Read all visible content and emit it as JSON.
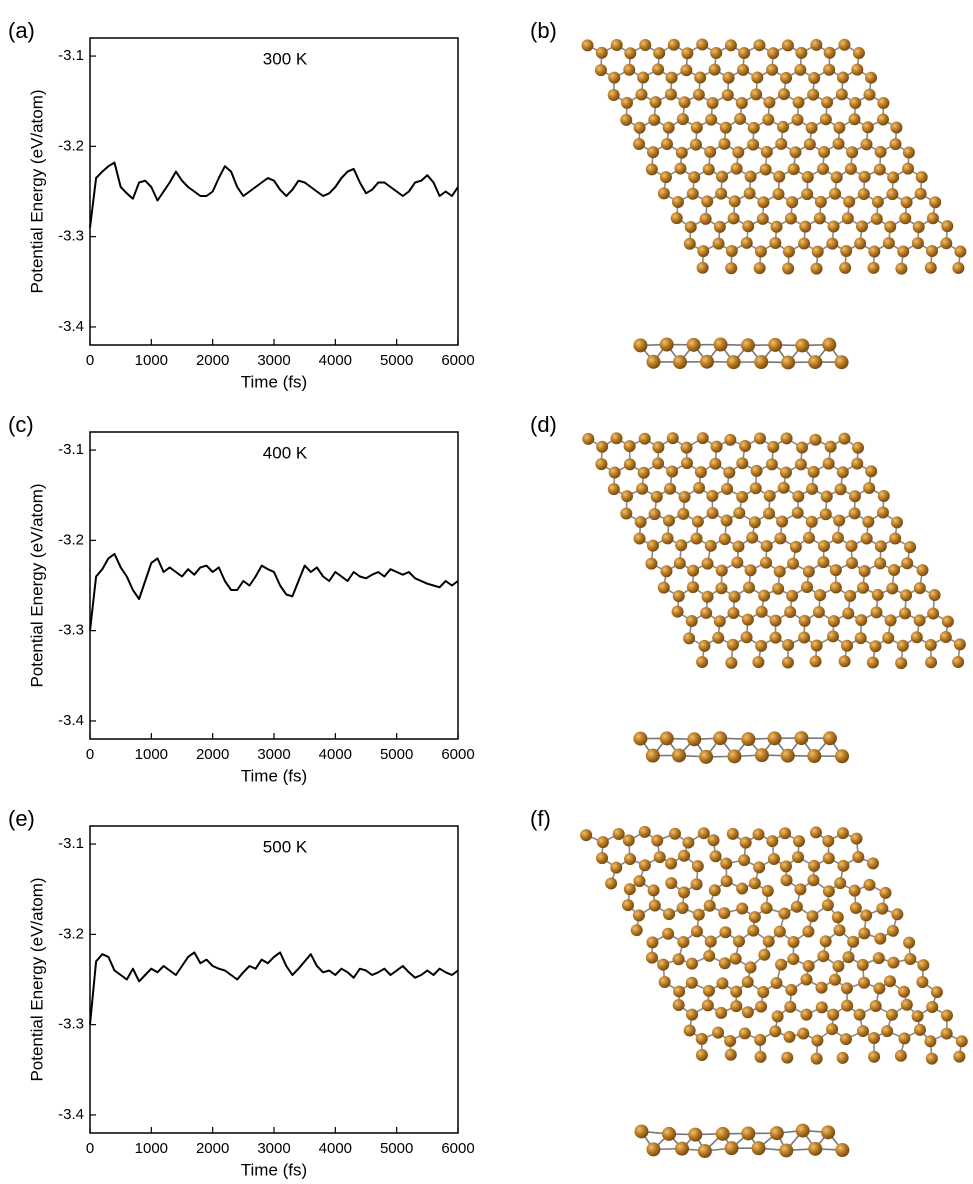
{
  "chart_data": [
    {
      "type": "line",
      "panel_label": "(a)",
      "annotation": "300 K",
      "xlabel": "Time (fs)",
      "ylabel": "Potential Energy (eV/atom)",
      "x": [
        0,
        100,
        200,
        300,
        400,
        500,
        600,
        700,
        800,
        900,
        1000,
        1100,
        1200,
        1300,
        1400,
        1500,
        1600,
        1700,
        1800,
        1900,
        2000,
        2100,
        2200,
        2300,
        2400,
        2500,
        2600,
        2700,
        2800,
        2900,
        3000,
        3100,
        3200,
        3300,
        3400,
        3500,
        3600,
        3700,
        3800,
        3900,
        4000,
        4100,
        4200,
        4300,
        4400,
        4500,
        4600,
        4700,
        4800,
        4900,
        5000,
        5100,
        5200,
        5300,
        5400,
        5500,
        5600,
        5700,
        5800,
        5900,
        6000
      ],
      "values": [
        -3.29,
        -3.235,
        -3.228,
        -3.222,
        -3.218,
        -3.245,
        -3.252,
        -3.258,
        -3.24,
        -3.238,
        -3.245,
        -3.26,
        -3.25,
        -3.24,
        -3.228,
        -3.238,
        -3.245,
        -3.25,
        -3.255,
        -3.255,
        -3.25,
        -3.235,
        -3.222,
        -3.228,
        -3.245,
        -3.255,
        -3.25,
        -3.245,
        -3.24,
        -3.235,
        -3.238,
        -3.248,
        -3.255,
        -3.248,
        -3.238,
        -3.24,
        -3.245,
        -3.25,
        -3.255,
        -3.252,
        -3.245,
        -3.235,
        -3.228,
        -3.225,
        -3.24,
        -3.252,
        -3.248,
        -3.24,
        -3.24,
        -3.245,
        -3.25,
        -3.255,
        -3.25,
        -3.24,
        -3.238,
        -3.232,
        -3.24,
        -3.255,
        -3.25,
        -3.255,
        -3.245
      ],
      "color": "#000000",
      "xlim": [
        0,
        6000
      ],
      "ylim": [
        -3.42,
        -3.08
      ],
      "xticks": [
        0,
        1000,
        2000,
        3000,
        4000,
        5000,
        6000
      ],
      "yticks": [
        -3.1,
        -3.2,
        -3.3,
        -3.4
      ]
    },
    {
      "type": "line",
      "panel_label": "(c)",
      "annotation": "400 K",
      "xlabel": "Time (fs)",
      "ylabel": "Potential Energy (eV/atom)",
      "x": [
        0,
        100,
        200,
        300,
        400,
        500,
        600,
        700,
        800,
        900,
        1000,
        1100,
        1200,
        1300,
        1400,
        1500,
        1600,
        1700,
        1800,
        1900,
        2000,
        2100,
        2200,
        2300,
        2400,
        2500,
        2600,
        2700,
        2800,
        2900,
        3000,
        3100,
        3200,
        3300,
        3400,
        3500,
        3600,
        3700,
        3800,
        3900,
        4000,
        4100,
        4200,
        4300,
        4400,
        4500,
        4600,
        4700,
        4800,
        4900,
        5000,
        5100,
        5200,
        5300,
        5400,
        5500,
        5600,
        5700,
        5800,
        5900,
        6000
      ],
      "values": [
        -3.3,
        -3.24,
        -3.232,
        -3.22,
        -3.215,
        -3.23,
        -3.24,
        -3.255,
        -3.265,
        -3.245,
        -3.225,
        -3.22,
        -3.235,
        -3.23,
        -3.235,
        -3.24,
        -3.232,
        -3.238,
        -3.23,
        -3.228,
        -3.235,
        -3.23,
        -3.245,
        -3.255,
        -3.255,
        -3.245,
        -3.25,
        -3.24,
        -3.228,
        -3.232,
        -3.235,
        -3.25,
        -3.26,
        -3.262,
        -3.245,
        -3.228,
        -3.235,
        -3.23,
        -3.24,
        -3.245,
        -3.235,
        -3.24,
        -3.245,
        -3.235,
        -3.24,
        -3.242,
        -3.238,
        -3.235,
        -3.24,
        -3.232,
        -3.235,
        -3.238,
        -3.235,
        -3.242,
        -3.245,
        -3.248,
        -3.25,
        -3.252,
        -3.245,
        -3.25,
        -3.245
      ],
      "color": "#000000",
      "xlim": [
        0,
        6000
      ],
      "ylim": [
        -3.42,
        -3.08
      ],
      "xticks": [
        0,
        1000,
        2000,
        3000,
        4000,
        5000,
        6000
      ],
      "yticks": [
        -3.1,
        -3.2,
        -3.3,
        -3.4
      ]
    },
    {
      "type": "line",
      "panel_label": "(e)",
      "annotation": "500 K",
      "xlabel": "Time (fs)",
      "ylabel": "Potential Energy (eV/atom)",
      "x": [
        0,
        100,
        200,
        300,
        400,
        500,
        600,
        700,
        800,
        900,
        1000,
        1100,
        1200,
        1300,
        1400,
        1500,
        1600,
        1700,
        1800,
        1900,
        2000,
        2100,
        2200,
        2300,
        2400,
        2500,
        2600,
        2700,
        2800,
        2900,
        3000,
        3100,
        3200,
        3300,
        3400,
        3500,
        3600,
        3700,
        3800,
        3900,
        4000,
        4100,
        4200,
        4300,
        4400,
        4500,
        4600,
        4700,
        4800,
        4900,
        5000,
        5100,
        5200,
        5300,
        5400,
        5500,
        5600,
        5700,
        5800,
        5900,
        6000
      ],
      "values": [
        -3.3,
        -3.23,
        -3.222,
        -3.225,
        -3.24,
        -3.245,
        -3.25,
        -3.238,
        -3.252,
        -3.245,
        -3.238,
        -3.242,
        -3.235,
        -3.24,
        -3.245,
        -3.235,
        -3.225,
        -3.22,
        -3.232,
        -3.228,
        -3.235,
        -3.238,
        -3.24,
        -3.245,
        -3.25,
        -3.242,
        -3.235,
        -3.238,
        -3.228,
        -3.232,
        -3.225,
        -3.22,
        -3.235,
        -3.245,
        -3.238,
        -3.23,
        -3.222,
        -3.235,
        -3.242,
        -3.24,
        -3.245,
        -3.238,
        -3.242,
        -3.248,
        -3.238,
        -3.24,
        -3.245,
        -3.242,
        -3.238,
        -3.245,
        -3.24,
        -3.235,
        -3.242,
        -3.248,
        -3.245,
        -3.24,
        -3.245,
        -3.238,
        -3.242,
        -3.245,
        -3.24
      ],
      "color": "#000000",
      "xlim": [
        0,
        6000
      ],
      "ylim": [
        -3.42,
        -3.08
      ],
      "xticks": [
        0,
        1000,
        2000,
        3000,
        4000,
        5000,
        6000
      ],
      "yticks": [
        -3.1,
        -3.2,
        -3.3,
        -3.4
      ]
    }
  ],
  "structure_panels": [
    {
      "label": "(b)"
    },
    {
      "label": "(d)"
    },
    {
      "label": "(f)"
    }
  ]
}
